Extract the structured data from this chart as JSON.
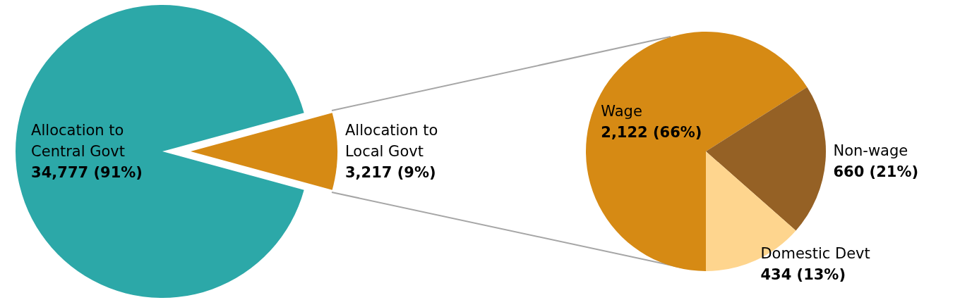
{
  "chart_data": [
    {
      "type": "pie",
      "categories": [
        "Allocation to Central Govt",
        "Allocation to Local Govt"
      ],
      "values": [
        34777,
        3217
      ],
      "colors": [
        "#2ca8a8",
        "#d68a14"
      ],
      "value_labels": [
        "34,777 (91%)",
        "3,217 (9%)"
      ]
    },
    {
      "type": "pie",
      "categories": [
        "Wage",
        "Non-wage",
        "Domestic Devt"
      ],
      "values": [
        2122,
        660,
        434
      ],
      "colors": [
        "#d68a14",
        "#956125",
        "#fed58e"
      ],
      "value_labels": [
        "2,122 (66%)",
        "660 (21%)",
        "434 (13%)"
      ]
    }
  ]
}
